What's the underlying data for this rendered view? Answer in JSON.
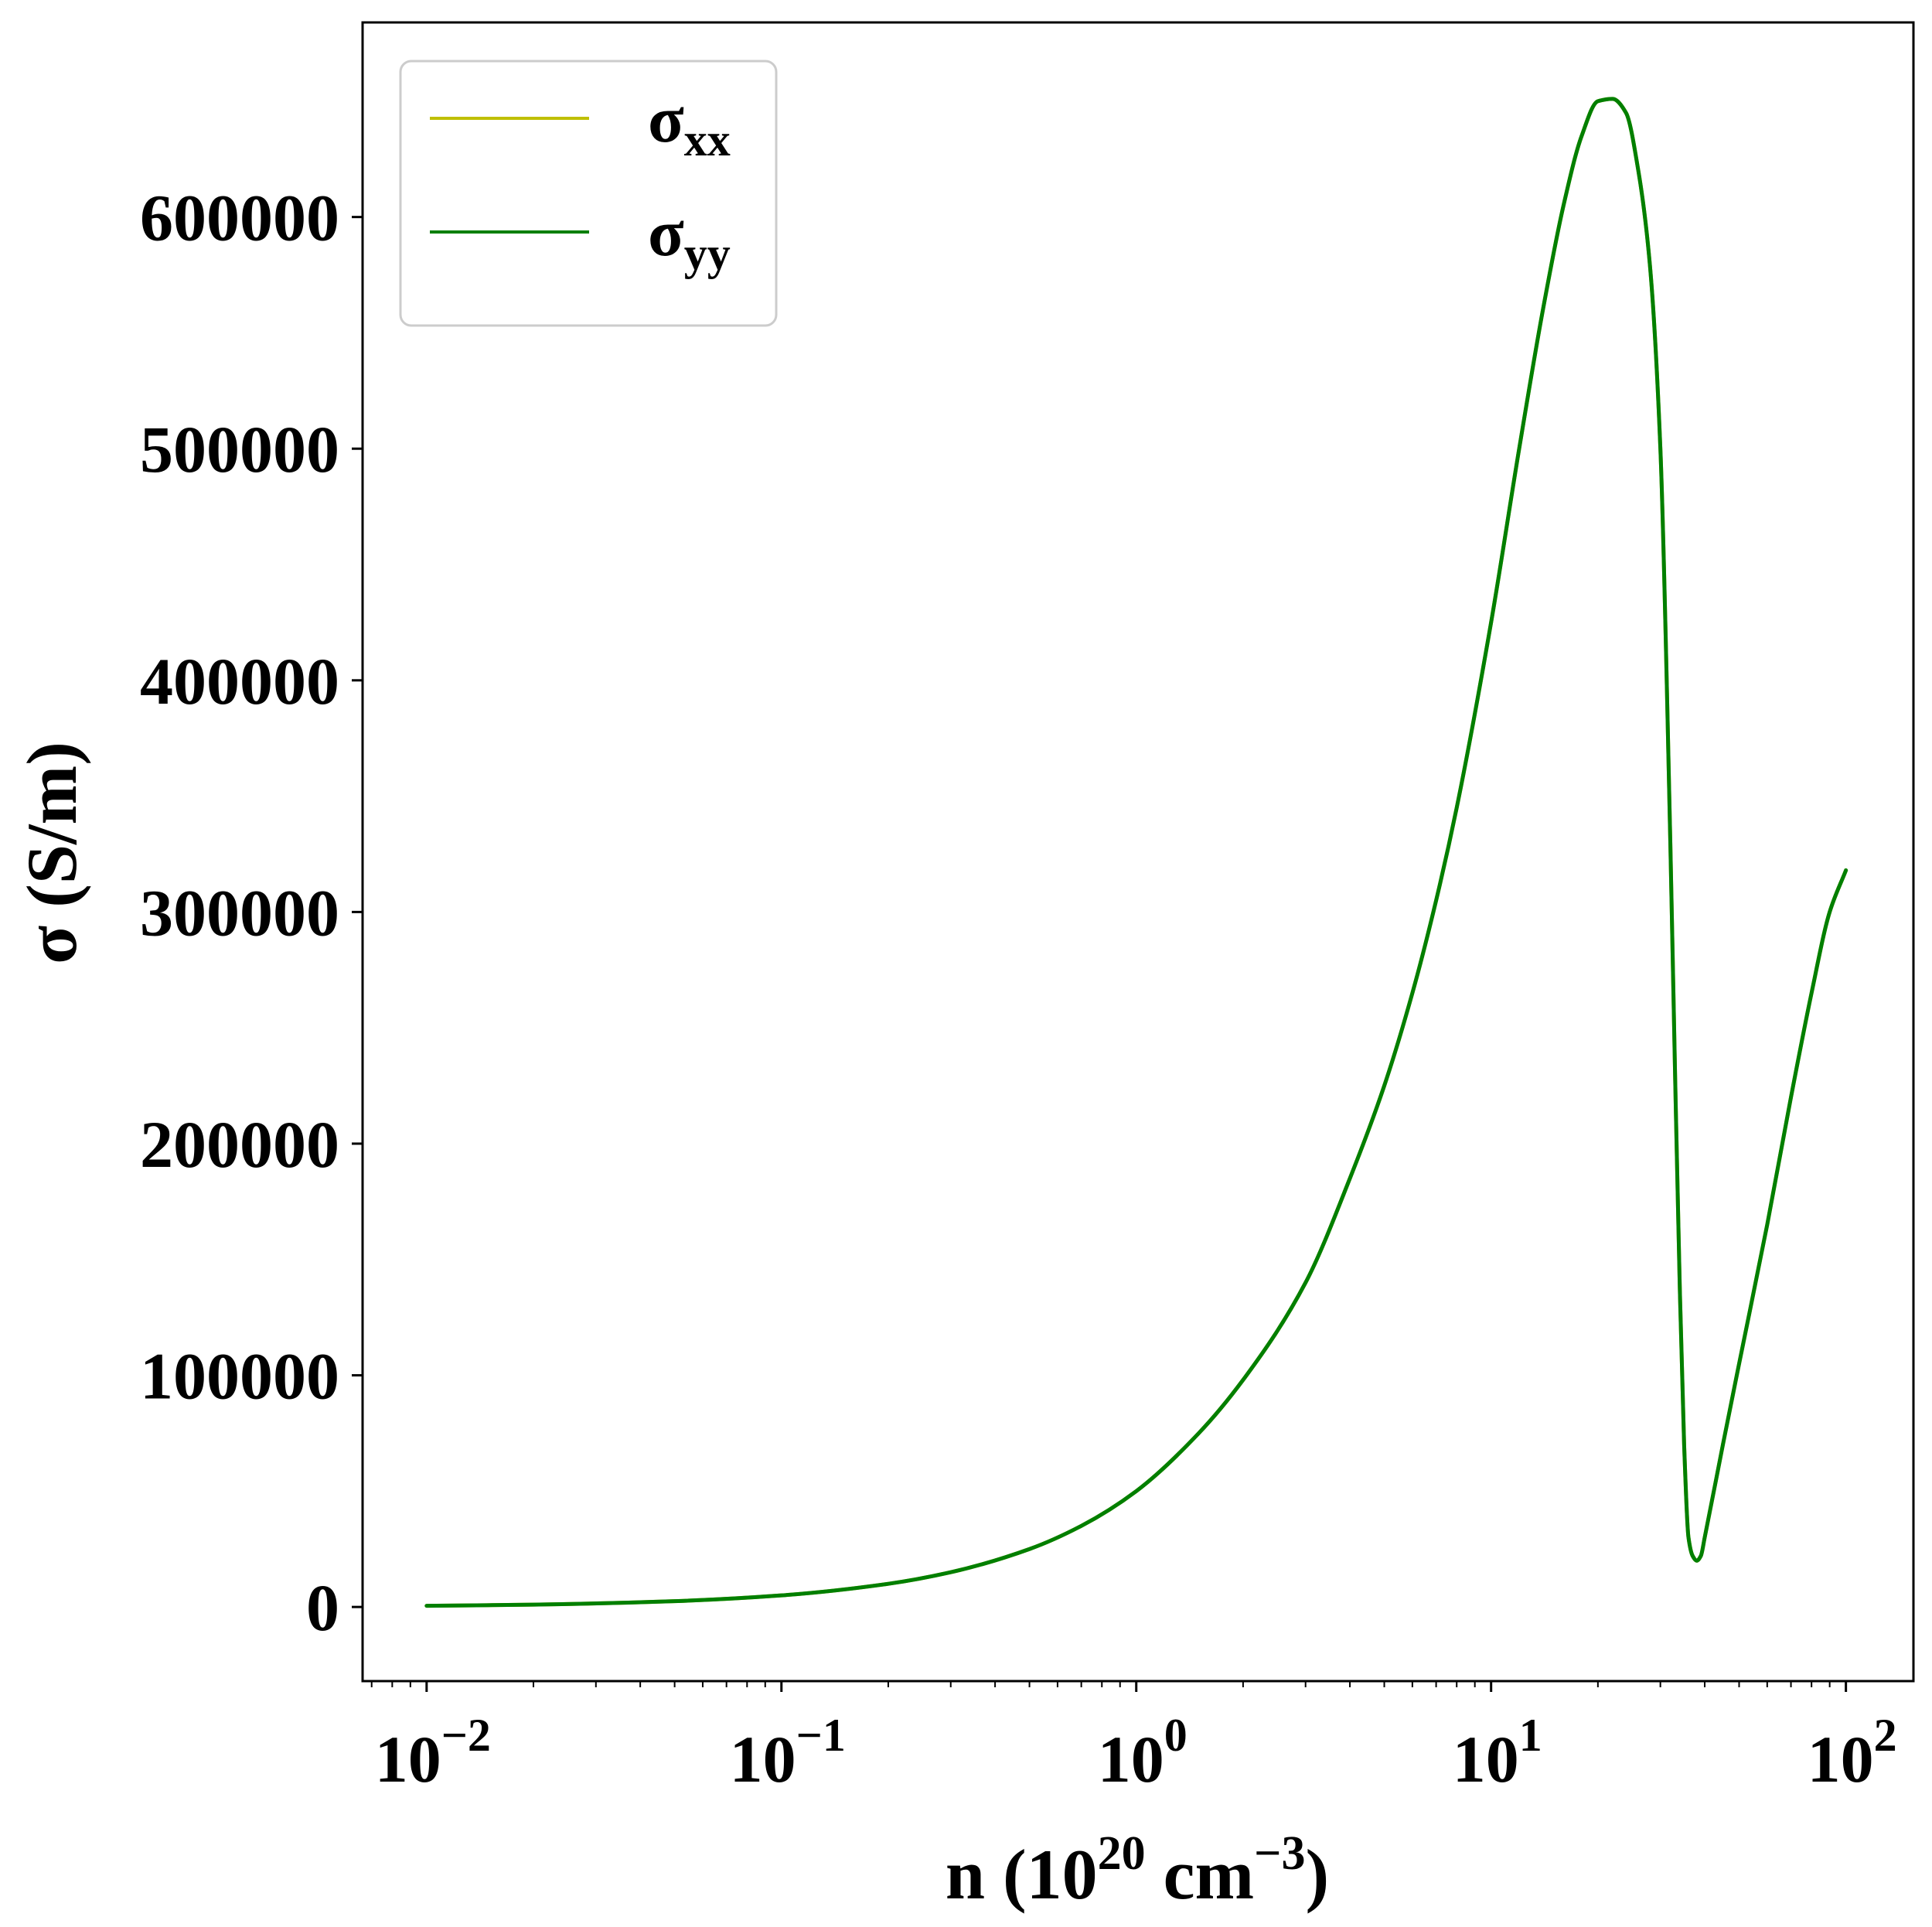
{
  "chart_data": {
    "type": "line",
    "title": "",
    "xlabel": {
      "base": "n (10",
      "base_exp": "20",
      "unit": " cm",
      "unit_exp": "−3",
      "close": ")"
    },
    "ylabel": "σ (S/m)",
    "xscale": "log",
    "xlim": [
      0.0066,
      155
    ],
    "ylim": [
      -32000,
      684000
    ],
    "xticks": [
      {
        "value": 0.01,
        "base": "10",
        "exp": "−2"
      },
      {
        "value": 0.1,
        "base": "10",
        "exp": "−1"
      },
      {
        "value": 1,
        "base": "10",
        "exp": "0"
      },
      {
        "value": 10,
        "base": "10",
        "exp": "1"
      },
      {
        "value": 100,
        "base": "10",
        "exp": "2"
      }
    ],
    "yticks": [
      0,
      100000,
      200000,
      300000,
      400000,
      500000,
      600000
    ],
    "ytick_labels": [
      "0",
      "100000",
      "200000",
      "300000",
      "400000",
      "500000",
      "600000"
    ],
    "grid": false,
    "legend_position": "top-left",
    "series": [
      {
        "name": "σ",
        "subscript": "xx",
        "color": "#bfbf00",
        "x": [
          0.01,
          0.02,
          0.05,
          0.1,
          0.2,
          0.3,
          0.5,
          0.7,
          1.0,
          1.5,
          2.0,
          3.0,
          4.0,
          5.0,
          6.0,
          7.0,
          8.0,
          10.0,
          12.0,
          14.0,
          16.0,
          18.0,
          20.0,
          22.0,
          24.0,
          26.0,
          28.0,
          30.0,
          32.0,
          33.0,
          34.0,
          35.0,
          36.0,
          37.0,
          38.0,
          39.0,
          40.0,
          45.0,
          50.0,
          60.0,
          70.0,
          80.0,
          90.0,
          100.0
        ],
        "y": [
          500,
          1000,
          2500,
          5000,
          10000,
          15000,
          25000,
          35000,
          50000,
          75000,
          98000,
          140000,
          185000,
          225000,
          265000,
          305000,
          345000,
          425000,
          500000,
          560000,
          605000,
          635000,
          650000,
          651000,
          645000,
          620000,
          580000,
          500000,
          330000,
          230000,
          140000,
          70000,
          30000,
          22000,
          20000,
          22000,
          30000,
          70000,
          105000,
          165000,
          220000,
          265000,
          300000,
          318000
        ]
      },
      {
        "name": "σ",
        "subscript": "yy",
        "color": "#007f00",
        "x": [
          0.01,
          0.02,
          0.05,
          0.1,
          0.2,
          0.3,
          0.5,
          0.7,
          1.0,
          1.5,
          2.0,
          3.0,
          4.0,
          5.0,
          6.0,
          7.0,
          8.0,
          10.0,
          12.0,
          14.0,
          16.0,
          18.0,
          20.0,
          22.0,
          24.0,
          26.0,
          28.0,
          30.0,
          32.0,
          33.0,
          34.0,
          35.0,
          36.0,
          37.0,
          38.0,
          39.0,
          40.0,
          45.0,
          50.0,
          60.0,
          70.0,
          80.0,
          90.0,
          100.0
        ],
        "y": [
          500,
          1000,
          2500,
          5000,
          10000,
          15000,
          25000,
          35000,
          50000,
          75000,
          98000,
          140000,
          185000,
          225000,
          265000,
          305000,
          345000,
          425000,
          500000,
          560000,
          605000,
          635000,
          650000,
          651000,
          645000,
          620000,
          580000,
          500000,
          330000,
          230000,
          140000,
          70000,
          30000,
          22000,
          20000,
          22000,
          30000,
          70000,
          105000,
          165000,
          220000,
          265000,
          300000,
          318000
        ]
      }
    ]
  }
}
